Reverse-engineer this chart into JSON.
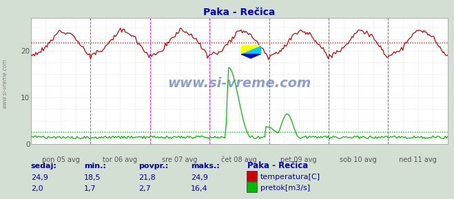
{
  "title": "Paka - Rečica",
  "bg_color": "#d4dfd4",
  "plot_bg_color": "#ffffff",
  "grid_color": "#c8c8c8",
  "x_labels": [
    "pon 05 avg",
    "tor 06 avg",
    "sre 07 avg",
    "čet 08 avg",
    "pet 09 avg",
    "sob 10 avg",
    "ned 11 avg"
  ],
  "y_ticks": [
    0,
    10,
    20
  ],
  "y_min": 0,
  "y_max": 27,
  "temp_color": "#cc0000",
  "flow_color": "#00bb00",
  "avg_temp_color": "#cc0000",
  "avg_flow_color": "#00bb00",
  "avg_temp": 21.8,
  "avg_flow": 2.7,
  "vline_color": "#ff00ff",
  "title_color": "#0000cc",
  "label_color": "#0000aa",
  "watermark": "www.si-vreme.com",
  "watermark_color": "#3355aa",
  "sidebar_text": "www.si-vreme.com",
  "sidebar_color": "#888888",
  "footer_headers": [
    "sedaj:",
    "min.:",
    "povpr.:",
    "maks.:"
  ],
  "footer_values_temp": [
    "24,9",
    "18,5",
    "21,8",
    "24,9"
  ],
  "footer_values_flow": [
    "2,0",
    "1,7",
    "2,7",
    "16,4"
  ],
  "footer_label": "Paka - Rečica",
  "legend_items": [
    "temperatura[C]",
    "pretok[m3/s]"
  ],
  "legend_colors": [
    "#cc0000",
    "#00bb00"
  ],
  "n_points": 336
}
